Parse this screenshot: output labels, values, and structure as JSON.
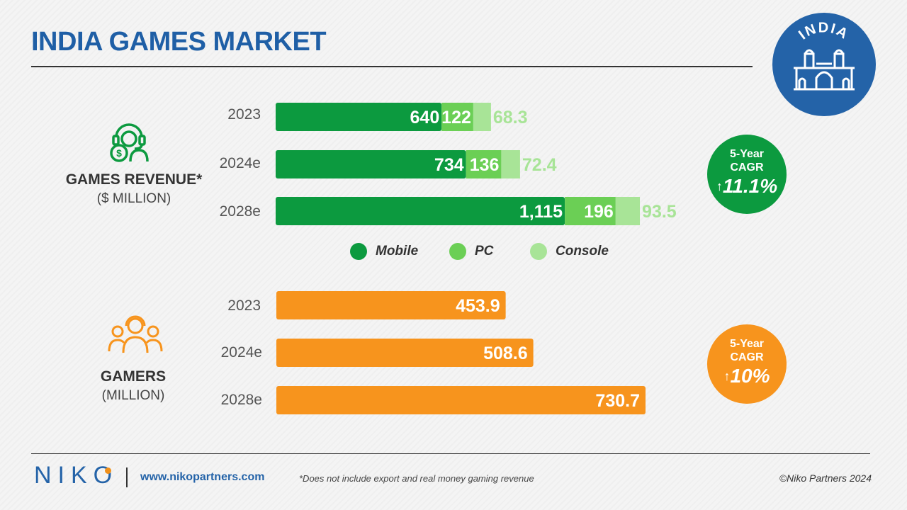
{
  "title": "INDIA GAMES MARKET",
  "badge": {
    "text": "INDIA"
  },
  "colors": {
    "mobile": "#0c9a3f",
    "pc": "#6bcf55",
    "console": "#a8e497",
    "gamers": "#f7941d",
    "brand_blue": "#2463a8",
    "title_blue": "#1f5fa6"
  },
  "revenue": {
    "label": "GAMES REVENUE*",
    "unit": "($ MILLION)",
    "icon": "revenue-headset-icon",
    "cagr_label_1": "5-Year",
    "cagr_label_2": "CAGR",
    "cagr_arrow": "↑",
    "cagr_value": "11.1%"
  },
  "gamers": {
    "label": "GAMERS",
    "unit": "(MILLION)",
    "icon": "gamers-group-icon",
    "cagr_label_1": "5-Year",
    "cagr_label_2": "CAGR",
    "cagr_arrow": "↑",
    "cagr_value": "10%"
  },
  "legend": {
    "mobile": "Mobile",
    "pc": "PC",
    "console": "Console"
  },
  "chart_data": [
    {
      "type": "bar",
      "orientation": "horizontal",
      "stacked": true,
      "categories": [
        "2023",
        "2024e",
        "2028e"
      ],
      "series": [
        {
          "name": "Mobile",
          "values": [
            640,
            734,
            1115
          ],
          "labels": [
            "640",
            "734",
            "1,115"
          ]
        },
        {
          "name": "PC",
          "values": [
            122,
            136,
            196
          ],
          "labels": [
            "122",
            "136",
            "196"
          ]
        },
        {
          "name": "Console",
          "values": [
            68.3,
            72.4,
            93.5
          ],
          "labels": [
            "68.3",
            "72.4",
            "93.5"
          ]
        }
      ],
      "legend": "bottom",
      "grid": false
    },
    {
      "type": "bar",
      "orientation": "horizontal",
      "categories": [
        "2023",
        "2024e",
        "2028e"
      ],
      "values": [
        453.9,
        508.6,
        730.7
      ],
      "labels": [
        "453.9",
        "508.6",
        "730.7"
      ],
      "grid": false
    }
  ],
  "footer": {
    "logo": "NIKO",
    "url": "www.nikopartners.com",
    "footnote": "*Does not include export and real money gaming revenue",
    "copyright": "©Niko Partners 2024"
  }
}
